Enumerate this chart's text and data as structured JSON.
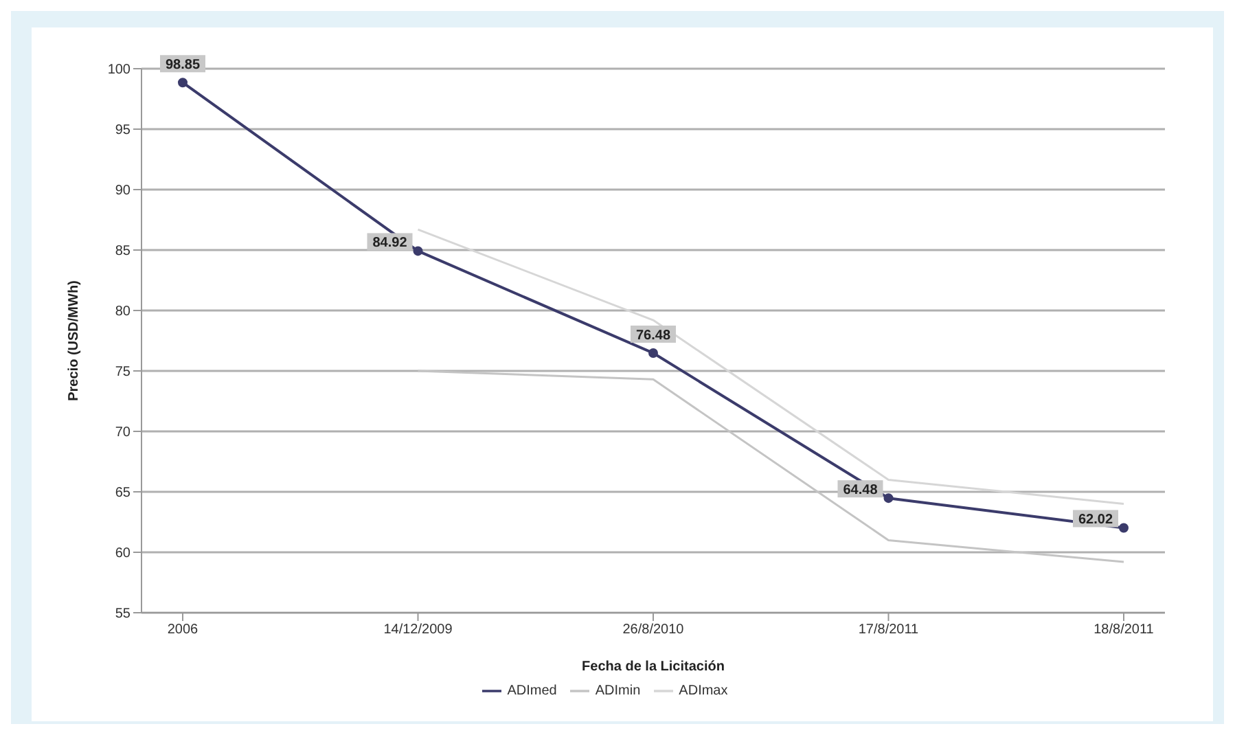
{
  "chart_data": {
    "type": "line",
    "xlabel": "Fecha de la Licitación",
    "ylabel": "Precio (USD/MWh)",
    "categories": [
      "2006",
      "14/12/2009",
      "26/8/2010",
      "17/8/2011",
      "18/8/2011"
    ],
    "series": [
      {
        "name": "ADImed",
        "color": "#3b3b6b",
        "values": [
          98.85,
          84.92,
          76.48,
          64.48,
          62.02
        ],
        "value_labels": [
          "98.85",
          "84.92",
          "76.48",
          "64.48",
          "62.02"
        ],
        "marker": "circle"
      },
      {
        "name": "ADImin",
        "color": "#c4c4c4",
        "values": [
          null,
          75,
          74.3,
          61,
          59.2
        ]
      },
      {
        "name": "ADImax",
        "color": "#d6d6d6",
        "values": [
          null,
          86.7,
          79.2,
          66,
          64
        ]
      }
    ],
    "ylim": [
      55,
      100
    ],
    "yticks": [
      55,
      60,
      65,
      70,
      75,
      80,
      85,
      90,
      95,
      100
    ],
    "grid": "y",
    "legend": "bottom"
  }
}
